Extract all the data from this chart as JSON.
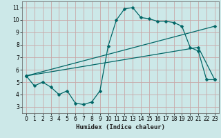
{
  "xlabel": "Humidex (Indice chaleur)",
  "bg_color": "#cce8e8",
  "grid_color": "#c8a8a8",
  "line_color": "#006666",
  "xlim": [
    -0.5,
    23.5
  ],
  "ylim": [
    2.5,
    11.5
  ],
  "xticks": [
    0,
    1,
    2,
    3,
    4,
    5,
    6,
    7,
    8,
    9,
    10,
    11,
    12,
    13,
    14,
    15,
    16,
    17,
    18,
    19,
    20,
    21,
    22,
    23
  ],
  "yticks": [
    3,
    4,
    5,
    6,
    7,
    8,
    9,
    10,
    11
  ],
  "curve1_x": [
    0,
    1,
    2,
    3,
    4,
    5,
    6,
    7,
    8,
    9,
    10,
    11,
    12,
    13,
    14,
    15,
    16,
    17,
    18,
    19,
    20,
    21,
    22,
    23
  ],
  "curve1_y": [
    5.5,
    4.7,
    5.0,
    4.6,
    4.0,
    4.3,
    3.3,
    3.2,
    3.4,
    4.3,
    7.9,
    10.0,
    10.9,
    11.0,
    10.2,
    10.1,
    9.9,
    9.9,
    9.8,
    9.5,
    7.8,
    7.5,
    5.2,
    5.2
  ],
  "curve2_x": [
    0,
    23
  ],
  "curve2_y": [
    5.5,
    9.5
  ],
  "curve3_x": [
    0,
    21,
    23
  ],
  "curve3_y": [
    5.5,
    7.8,
    5.2
  ],
  "marker": "D",
  "markersize": 2.5,
  "linewidth": 0.9
}
